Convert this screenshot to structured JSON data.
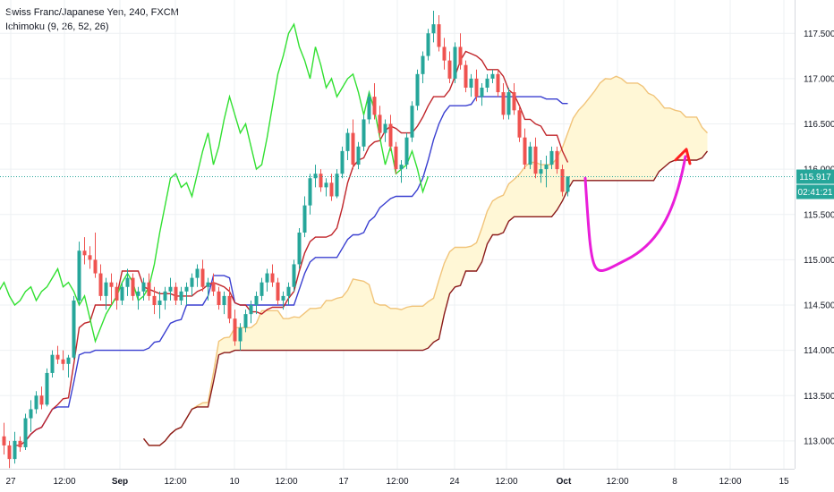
{
  "legend": {
    "symbol": "Swiss Franc/Japanese Yen, 240, FXCM",
    "indicator": "Ichimoku (9, 26, 52, 26)"
  },
  "chart_data": {
    "type": "candlestick",
    "symbol": "CHFJPY",
    "timeframe": "240",
    "source": "FXCM",
    "y_axis": {
      "ticks": [
        113.0,
        113.5,
        114.0,
        114.5,
        115.0,
        115.5,
        116.0,
        116.5,
        117.0,
        117.5
      ],
      "tick_labels": [
        "113.000",
        "113.500",
        "114.000",
        "114.500",
        "115.000",
        "115.500",
        "116.000",
        "116.500",
        "117.000",
        "117.500"
      ],
      "range": [
        112.55,
        117.75
      ]
    },
    "x_axis": {
      "tick_labels": [
        "27",
        "12:00",
        "Sep",
        "12:00",
        "10",
        "12:00",
        "17",
        "12:00",
        "24",
        "12:00",
        "Oct",
        "12:00",
        "8",
        "12:00",
        "15"
      ],
      "bold_labels": [
        "Sep",
        "Oct"
      ]
    },
    "price_tags": {
      "current_price": "115.917",
      "countdown": "02:41:21"
    },
    "current_price_value": 115.917,
    "candles_ohlc": [
      [
        113.05,
        113.2,
        112.85,
        112.95
      ],
      [
        112.95,
        113.0,
        112.7,
        112.8
      ],
      [
        112.8,
        113.1,
        112.75,
        113.0
      ],
      [
        113.0,
        113.05,
        112.88,
        112.93
      ],
      [
        112.93,
        113.3,
        112.9,
        113.25
      ],
      [
        113.25,
        113.45,
        113.1,
        113.35
      ],
      [
        113.35,
        113.55,
        113.3,
        113.5
      ],
      [
        113.5,
        113.6,
        113.35,
        113.4
      ],
      [
        113.4,
        113.8,
        113.38,
        113.75
      ],
      [
        113.75,
        114.0,
        113.7,
        113.95
      ],
      [
        113.95,
        114.05,
        113.85,
        113.9
      ],
      [
        113.9,
        114.0,
        113.78,
        113.85
      ],
      [
        113.85,
        113.95,
        113.7,
        113.92
      ],
      [
        113.92,
        114.6,
        113.9,
        114.55
      ],
      [
        114.55,
        115.2,
        114.5,
        115.1
      ],
      [
        115.1,
        115.25,
        114.95,
        115.05
      ],
      [
        115.05,
        115.15,
        114.9,
        115.0
      ],
      [
        115.0,
        115.3,
        114.8,
        114.85
      ],
      [
        114.85,
        114.95,
        114.55,
        114.6
      ],
      [
        114.6,
        114.8,
        114.45,
        114.75
      ],
      [
        114.75,
        114.85,
        114.5,
        114.7
      ],
      [
        114.7,
        114.75,
        114.45,
        114.55
      ],
      [
        114.55,
        114.75,
        114.5,
        114.7
      ],
      [
        114.7,
        114.9,
        114.6,
        114.8
      ],
      [
        114.8,
        114.85,
        114.55,
        114.6
      ],
      [
        114.6,
        114.7,
        114.45,
        114.65
      ],
      [
        114.65,
        114.8,
        114.55,
        114.75
      ],
      [
        114.75,
        114.85,
        114.55,
        114.6
      ],
      [
        114.6,
        114.7,
        114.4,
        114.5
      ],
      [
        114.5,
        114.65,
        114.35,
        114.55
      ],
      [
        114.55,
        114.7,
        114.45,
        114.65
      ],
      [
        114.65,
        114.8,
        114.55,
        114.7
      ],
      [
        114.7,
        114.75,
        114.5,
        114.55
      ],
      [
        114.55,
        114.7,
        114.5,
        114.65
      ],
      [
        114.65,
        114.75,
        114.5,
        114.7
      ],
      [
        114.7,
        114.85,
        114.6,
        114.8
      ],
      [
        114.8,
        114.95,
        114.7,
        114.9
      ],
      [
        114.9,
        115.0,
        114.65,
        114.7
      ],
      [
        114.7,
        114.8,
        114.55,
        114.75
      ],
      [
        114.75,
        114.85,
        114.6,
        114.65
      ],
      [
        114.65,
        114.7,
        114.45,
        114.5
      ],
      [
        114.5,
        114.65,
        114.4,
        114.6
      ],
      [
        114.6,
        114.7,
        114.3,
        114.35
      ],
      [
        114.35,
        114.45,
        114.05,
        114.1
      ],
      [
        114.1,
        114.3,
        114.0,
        114.25
      ],
      [
        114.25,
        114.45,
        114.2,
        114.4
      ],
      [
        114.4,
        114.55,
        114.3,
        114.5
      ],
      [
        114.5,
        114.65,
        114.4,
        114.6
      ],
      [
        114.6,
        114.8,
        114.55,
        114.75
      ],
      [
        114.75,
        114.9,
        114.65,
        114.85
      ],
      [
        114.85,
        114.95,
        114.7,
        114.75
      ],
      [
        114.75,
        114.8,
        114.5,
        114.55
      ],
      [
        114.55,
        114.65,
        114.45,
        114.6
      ],
      [
        114.6,
        114.75,
        114.5,
        114.7
      ],
      [
        114.7,
        115.0,
        114.65,
        114.95
      ],
      [
        114.95,
        115.35,
        114.9,
        115.3
      ],
      [
        115.3,
        115.7,
        115.25,
        115.6
      ],
      [
        115.6,
        115.95,
        115.5,
        115.9
      ],
      [
        115.9,
        116.05,
        115.8,
        115.95
      ],
      [
        115.95,
        116.0,
        115.75,
        115.8
      ],
      [
        115.8,
        115.9,
        115.7,
        115.85
      ],
      [
        115.85,
        115.95,
        115.65,
        115.7
      ],
      [
        115.7,
        116.0,
        115.68,
        115.95
      ],
      [
        115.95,
        116.25,
        115.9,
        116.2
      ],
      [
        116.2,
        116.45,
        116.1,
        116.4
      ],
      [
        116.4,
        116.55,
        116.0,
        116.05
      ],
      [
        116.05,
        116.3,
        116.0,
        116.25
      ],
      [
        116.25,
        116.6,
        116.2,
        116.55
      ],
      [
        116.55,
        116.85,
        116.5,
        116.8
      ],
      [
        116.8,
        116.95,
        116.55,
        116.6
      ],
      [
        116.6,
        116.7,
        116.35,
        116.4
      ],
      [
        116.4,
        116.55,
        116.3,
        116.5
      ],
      [
        116.5,
        116.6,
        116.2,
        116.25
      ],
      [
        116.25,
        116.3,
        115.95,
        116.0
      ],
      [
        116.0,
        116.1,
        115.85,
        116.05
      ],
      [
        116.05,
        116.4,
        116.0,
        116.35
      ],
      [
        116.35,
        116.75,
        116.3,
        116.7
      ],
      [
        116.7,
        117.1,
        116.65,
        117.05
      ],
      [
        117.05,
        117.3,
        116.95,
        117.25
      ],
      [
        117.25,
        117.55,
        117.2,
        117.5
      ],
      [
        117.5,
        117.75,
        117.4,
        117.6
      ],
      [
        117.6,
        117.7,
        117.3,
        117.35
      ],
      [
        117.35,
        117.45,
        117.1,
        117.2
      ],
      [
        117.2,
        117.3,
        116.95,
        117.0
      ],
      [
        117.0,
        117.4,
        116.95,
        117.35
      ],
      [
        117.35,
        117.5,
        117.1,
        117.15
      ],
      [
        117.15,
        117.2,
        116.85,
        116.9
      ],
      [
        116.9,
        117.05,
        116.8,
        117.0
      ],
      [
        117.0,
        117.1,
        116.75,
        116.8
      ],
      [
        116.8,
        116.95,
        116.7,
        116.9
      ],
      [
        116.9,
        117.05,
        116.85,
        117.0
      ],
      [
        117.0,
        117.1,
        116.95,
        117.05
      ],
      [
        117.05,
        117.1,
        116.8,
        116.85
      ],
      [
        116.85,
        116.95,
        116.55,
        116.6
      ],
      [
        116.6,
        116.9,
        116.55,
        116.85
      ],
      [
        116.85,
        116.95,
        116.6,
        116.65
      ],
      [
        116.65,
        116.7,
        116.3,
        116.35
      ],
      [
        116.35,
        116.45,
        116.0,
        116.05
      ],
      [
        116.05,
        116.3,
        116.0,
        116.25
      ],
      [
        116.25,
        116.35,
        115.9,
        115.95
      ],
      [
        115.95,
        116.1,
        115.85,
        116.0
      ],
      [
        116.0,
        116.15,
        115.8,
        116.05
      ],
      [
        116.05,
        116.25,
        116.0,
        116.2
      ],
      [
        116.2,
        116.25,
        115.95,
        116.0
      ],
      [
        116.0,
        116.05,
        115.7,
        115.75
      ],
      [
        115.75,
        115.9,
        115.7,
        115.92
      ]
    ],
    "forecast_arc": {
      "from": 115.9,
      "low": 115.0,
      "to": 116.2,
      "color": "#e91ed9"
    },
    "forecast_arrow_color": "#ff2020",
    "series": [
      {
        "kind": "tenkan-sen",
        "color": "#c0252a"
      },
      {
        "kind": "kijun-sen",
        "color": "#3a3fd0"
      },
      {
        "kind": "chikou-span",
        "color": "#31e031"
      },
      {
        "kind": "senkou-span-a",
        "color": "#f1c47a"
      },
      {
        "kind": "senkou-span-b",
        "color": "#8a1a1a"
      }
    ],
    "cloud_colors": {
      "bullish": "#fff7d6",
      "bearish": "#ecc3c6"
    },
    "grid": true
  }
}
